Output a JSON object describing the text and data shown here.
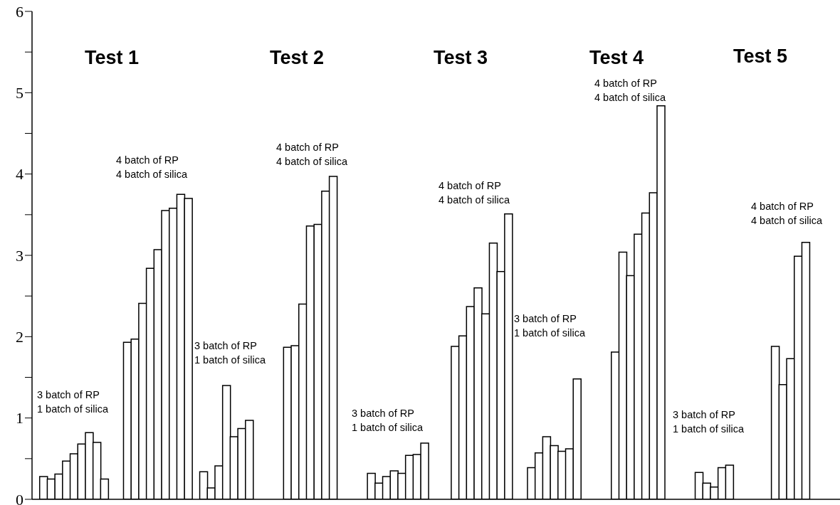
{
  "chart_data": {
    "type": "bar",
    "categories": [
      null,
      null,
      null,
      null,
      null,
      null,
      null,
      null,
      null,
      null,
      null,
      null,
      null,
      null,
      null,
      null,
      null,
      null,
      null,
      null,
      null,
      null,
      null,
      null,
      null,
      null,
      null,
      null,
      null,
      null,
      null,
      null,
      null,
      null,
      null,
      null,
      null,
      null,
      null,
      null,
      null,
      null,
      null,
      null,
      null,
      null,
      null,
      null,
      null,
      null,
      null,
      null,
      null,
      null,
      null,
      null,
      null,
      null,
      null,
      null,
      null,
      null,
      null,
      null,
      null,
      null,
      null,
      null,
      null,
      null,
      null,
      null,
      null,
      null,
      null,
      null,
      null,
      null,
      null,
      null,
      null,
      null,
      null,
      null,
      null,
      null,
      null,
      null,
      null,
      null,
      null,
      null,
      null,
      null,
      null,
      null,
      null,
      null,
      null,
      null,
      null,
      null,
      null,
      null,
      null,
      null
    ],
    "values": [
      null,
      0.28,
      0.25,
      0.31,
      0.47,
      0.56,
      0.68,
      0.82,
      0.7,
      0.25,
      null,
      null,
      1.93,
      1.97,
      2.41,
      2.84,
      3.07,
      3.55,
      3.58,
      3.75,
      3.7,
      null,
      0.34,
      0.14,
      0.41,
      1.4,
      0.77,
      0.87,
      0.97,
      null,
      null,
      null,
      null,
      1.87,
      1.89,
      2.4,
      3.36,
      3.38,
      3.79,
      3.97,
      null,
      null,
      null,
      null,
      0.32,
      0.2,
      0.28,
      0.35,
      0.32,
      0.54,
      0.55,
      0.69,
      null,
      null,
      null,
      1.88,
      2.01,
      2.37,
      2.6,
      2.28,
      3.15,
      2.8,
      3.51,
      null,
      null,
      0.39,
      0.57,
      0.77,
      0.66,
      0.59,
      0.62,
      1.48,
      null,
      null,
      null,
      null,
      1.81,
      3.04,
      2.75,
      3.26,
      3.52,
      3.77,
      4.84,
      null,
      null,
      null,
      null,
      0.33,
      0.2,
      0.15,
      0.39,
      0.42,
      null,
      null,
      null,
      null,
      null,
      1.88,
      1.41,
      1.73,
      2.99,
      3.16,
      null,
      null,
      null,
      null
    ],
    "color": "#ffffff",
    "ylim": [
      0,
      6
    ],
    "yticks": [
      0,
      {
        "value": 0.5,
        "label": null
      },
      1,
      {
        "value": 1.5,
        "label": null
      },
      2,
      {
        "value": 2.5,
        "label": null
      },
      3,
      {
        "value": 3.5,
        "label": null
      },
      4,
      {
        "value": 4.5,
        "label": null
      },
      5,
      {
        "value": 5.5,
        "label": null
      },
      6
    ],
    "tick_labels": "y",
    "grid": false,
    "legend": false,
    "annotations": [
      "Test 1",
      "Test 2",
      "Test 3",
      "Test 4",
      "Test 5",
      "3 batch of RP\n1 batch of silica",
      "4 batch of RP\n4 batch of silica",
      "3 batch of RP\n1 batch of silica",
      "4 batch of RP\n4 batch of silica",
      "3 batch of RP\n1 batch of silica",
      "4 batch of RP\n4 batch of silica",
      "3 batch of RP\n1 batch of silica",
      "4 batch of RP\n4 batch of silica",
      "3 batch of RP\n1 batch of silica",
      "4 batch of RP\n4 batch of silica"
    ]
  }
}
